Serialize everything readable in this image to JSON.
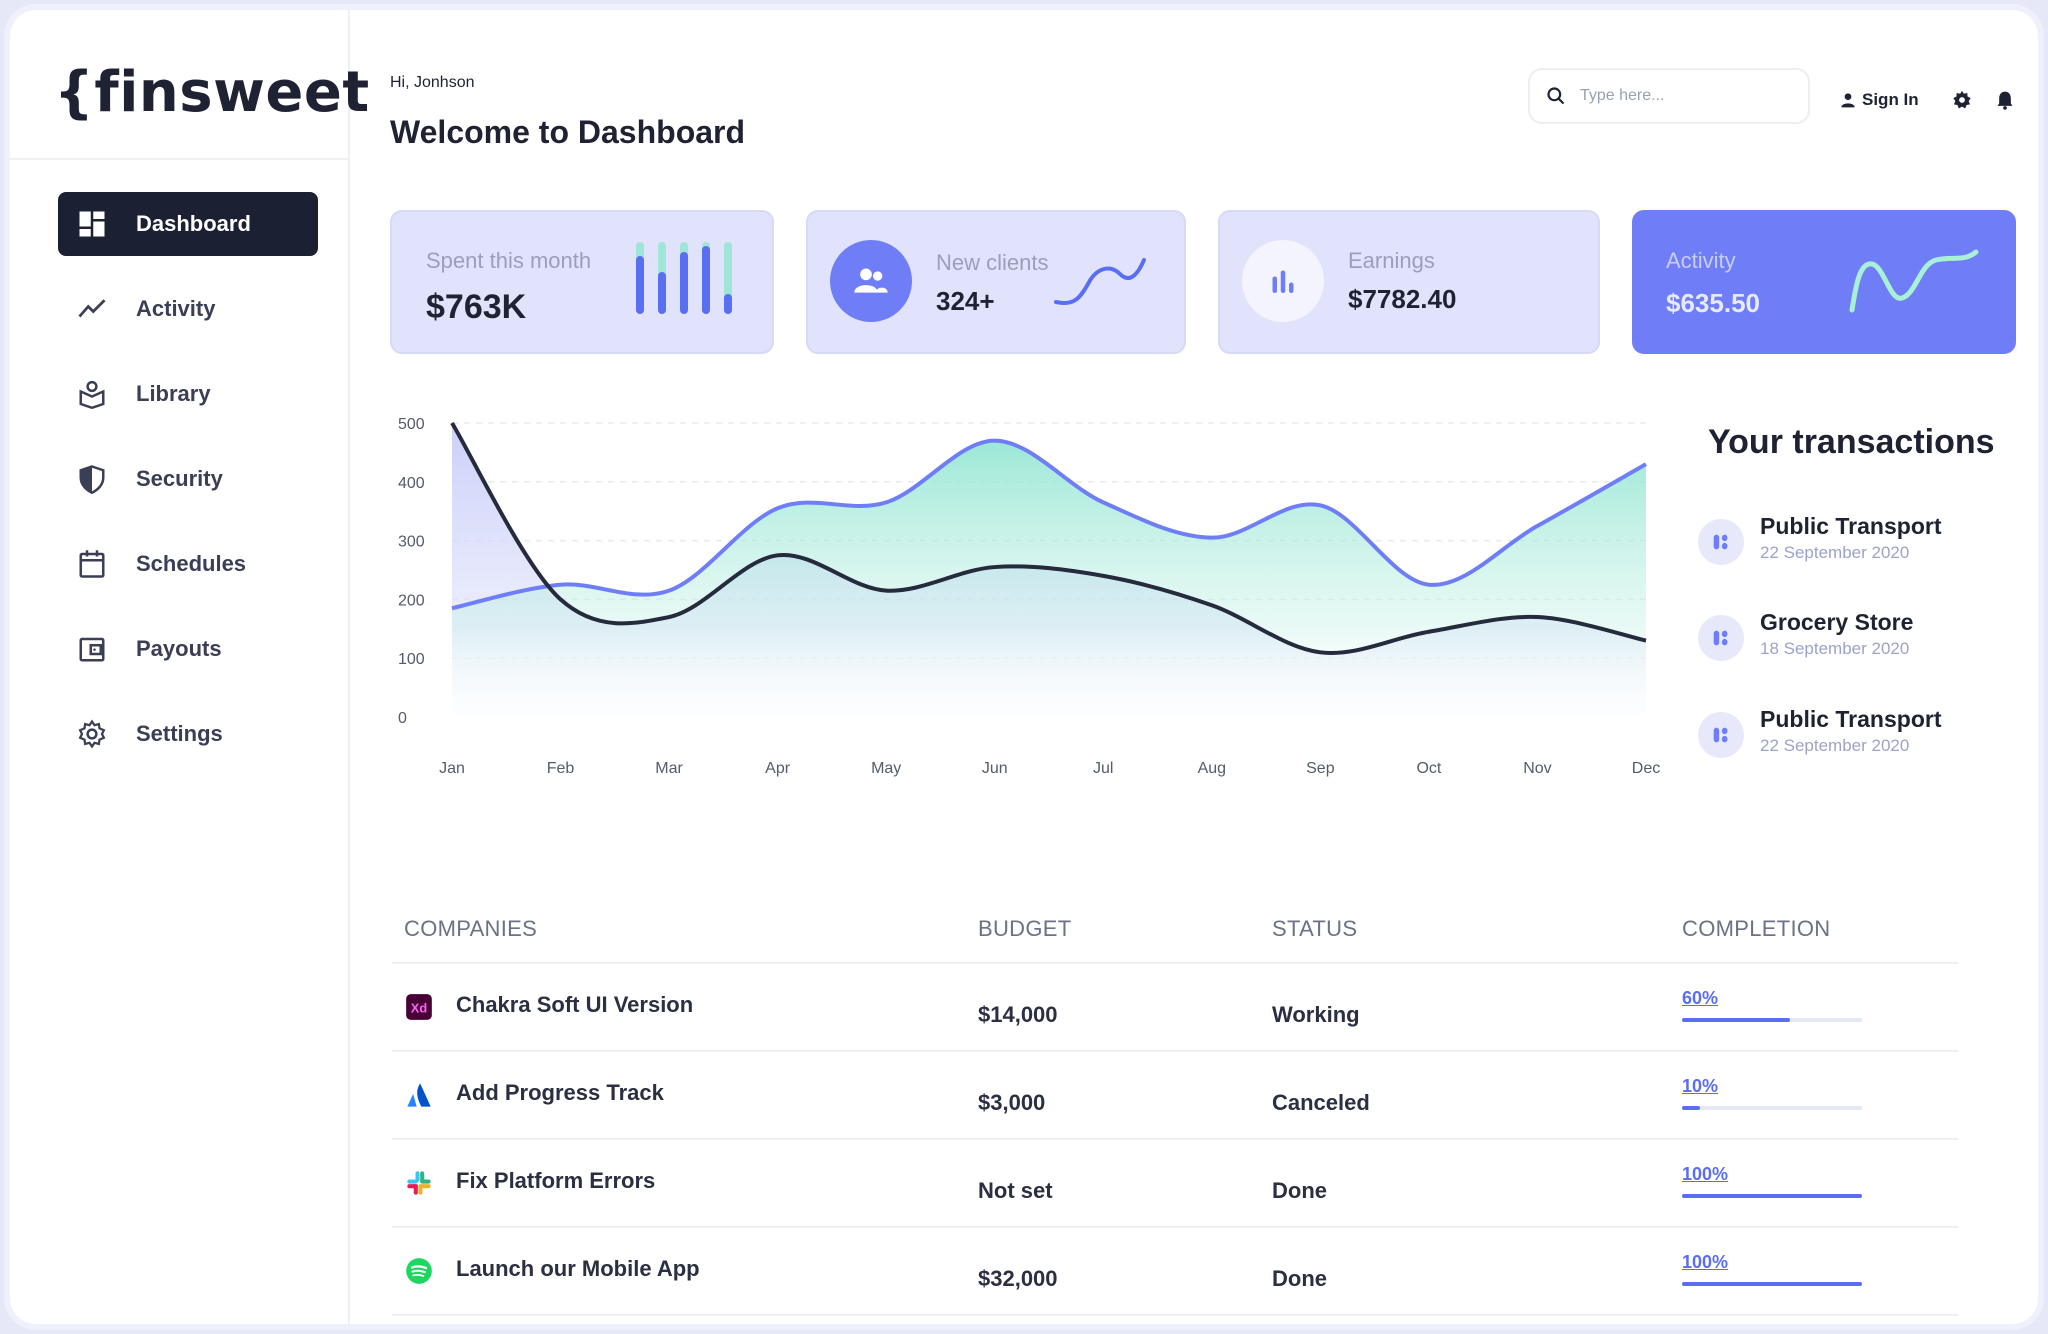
{
  "brand": {
    "logo_text": "{finsweet"
  },
  "sidebar": {
    "items": [
      {
        "label": "Dashboard",
        "icon": "dashboard-icon",
        "active": true
      },
      {
        "label": "Activity",
        "icon": "activity-icon"
      },
      {
        "label": "Library",
        "icon": "library-icon"
      },
      {
        "label": "Security",
        "icon": "shield-icon"
      },
      {
        "label": "Schedules",
        "icon": "calendar-icon"
      },
      {
        "label": "Payouts",
        "icon": "wallet-icon"
      },
      {
        "label": "Settings",
        "icon": "gear-icon"
      }
    ]
  },
  "header": {
    "greeting": "Hi, Jonhson",
    "title": "Welcome to Dashboard",
    "search_placeholder": "Type here...",
    "sign_in": "Sign In"
  },
  "stats": [
    {
      "label": "Spent this month",
      "value": "$763K"
    },
    {
      "label": "New clients",
      "value": "324+"
    },
    {
      "label": "Earnings",
      "value": "$7782.40"
    },
    {
      "label": "Activity",
      "value": "$635.50"
    }
  ],
  "chart_data": {
    "type": "area",
    "categories": [
      "Jan",
      "Feb",
      "Mar",
      "Apr",
      "May",
      "Jun",
      "Jul",
      "Aug",
      "Sep",
      "Oct",
      "Nov",
      "Dec"
    ],
    "ylim": [
      0,
      500
    ],
    "yticks": [
      0,
      100,
      200,
      300,
      400,
      500
    ],
    "grid": true,
    "series": [
      {
        "values": [
          185,
          225,
          215,
          355,
          365,
          470,
          365,
          305,
          360,
          225,
          325,
          430
        ],
        "color": "#6f7ef7"
      },
      {
        "values": [
          500,
          200,
          170,
          275,
          215,
          255,
          240,
          190,
          110,
          145,
          170,
          130
        ],
        "color": "#252a3d"
      }
    ]
  },
  "transactions": {
    "title": "Your transactions",
    "items": [
      {
        "name": "Public Transport",
        "date": "22 September 2020"
      },
      {
        "name": "Grocery Store",
        "date": "18 September 2020"
      },
      {
        "name": "Public Transport",
        "date": "22 September 2020"
      }
    ]
  },
  "table": {
    "headers": [
      "COMPANIES",
      "BUDGET",
      "STATUS",
      "COMPLETION"
    ],
    "rows": [
      {
        "company": "Chakra Soft UI Version",
        "logo": "xd-logo-icon",
        "budget": "$14,000",
        "status": "Working",
        "completion": "60%",
        "progress": 0.6
      },
      {
        "company": "Add Progress Track",
        "logo": "atlassian-logo-icon",
        "budget": "$3,000",
        "status": "Canceled",
        "completion": "10%",
        "progress": 0.1
      },
      {
        "company": "Fix Platform Errors",
        "logo": "slack-logo-icon",
        "budget": "Not set",
        "status": "Done",
        "completion": "100%",
        "progress": 1.0
      },
      {
        "company": "Launch our Mobile App",
        "logo": "spotify-logo-icon",
        "budget": "$32,000",
        "status": "Done",
        "completion": "100%",
        "progress": 1.0
      }
    ]
  }
}
